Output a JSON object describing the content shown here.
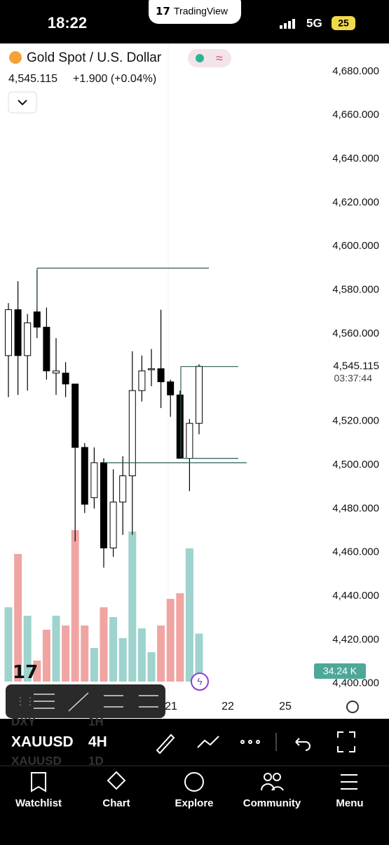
{
  "status_bar": {
    "time": "18:22",
    "brand": "TradingView",
    "network": "5G",
    "battery": "25"
  },
  "chart_data": {
    "type": "candlestick",
    "title": "Gold Spot / U.S. Dollar",
    "price": "4,545.115",
    "change": "+1.900 (+0.04%)",
    "countdown": "03:37:44",
    "ylim": [
      4396.7,
      4688.6
    ],
    "yticks": [
      {
        "value": 4400,
        "label": "4,400.000"
      },
      {
        "value": 4420,
        "label": "4,420.000"
      },
      {
        "value": 4440,
        "label": "4,440.000"
      },
      {
        "value": 4460,
        "label": "4,460.000"
      },
      {
        "value": 4480,
        "label": "4,480.000"
      },
      {
        "value": 4500,
        "label": "4,500.000"
      },
      {
        "value": 4520,
        "label": "4,520.000"
      },
      {
        "value": 4560,
        "label": "4,560.000"
      },
      {
        "value": 4580,
        "label": "4,580.000"
      },
      {
        "value": 4600,
        "label": "4,600.000"
      },
      {
        "value": 4620,
        "label": "4,620.000"
      },
      {
        "value": 4640,
        "label": "4,640.000"
      },
      {
        "value": 4660,
        "label": "4,660.000"
      },
      {
        "value": 4680,
        "label": "4,680.000"
      }
    ],
    "last_price": {
      "value": 4545.115,
      "label": "4,545.115"
    },
    "open": [
      4550,
      4571,
      4550,
      4570,
      4563,
      4542,
      4542,
      4537,
      4508,
      4485,
      4501,
      4462,
      4483,
      4495,
      4534,
      4544,
      4544,
      4538,
      4532,
      4503,
      4519
    ],
    "high": [
      4574,
      4584,
      4569,
      4589,
      4572,
      4558,
      4547,
      4537,
      4510,
      4508,
      4503,
      4498,
      4504,
      4552,
      4550,
      4553,
      4571,
      4539,
      4534,
      4521,
      4546
    ],
    "low": [
      4531,
      4532,
      4534,
      4558,
      4539,
      4532,
      4531,
      4465,
      4478,
      4480,
      4453,
      4458,
      4468,
      4468,
      4529,
      4536,
      4526,
      4522,
      4503,
      4488,
      4514
    ],
    "close": [
      4571,
      4550,
      4565,
      4563,
      4543,
      4543,
      4537,
      4508,
      4482,
      4501,
      4462,
      4483,
      4495,
      4534,
      4543,
      4544,
      4538,
      4532,
      4503,
      4519,
      4545.115
    ],
    "volume": [
      53,
      91,
      47,
      15,
      37,
      47,
      40,
      108,
      40,
      24,
      53,
      46,
      31,
      107,
      38,
      21,
      40,
      59,
      63,
      95,
      34.24
    ],
    "volume_lim": [
      0,
      200
    ],
    "last_volume": {
      "value": 34.24,
      "label": "34.24 K"
    },
    "levels": [
      4590,
      4545,
      4503,
      4501
    ],
    "up_color": "#ffffff",
    "down_color": "#000000",
    "volume_up_color": "#9fd3cd",
    "volume_down_color": "#f0a5a3",
    "level_color": "#2f5d57",
    "x_labels": [
      "21",
      "22",
      "25"
    ]
  },
  "toolbar": {
    "symbol": "XAUUSD",
    "interval": "4H",
    "hint_symbols": [
      "DXY",
      "XAUUSD"
    ],
    "hint_intervals": [
      "1H",
      "1D"
    ]
  },
  "nav": [
    "Watchlist",
    "Chart",
    "Explore",
    "Community",
    "Menu"
  ]
}
